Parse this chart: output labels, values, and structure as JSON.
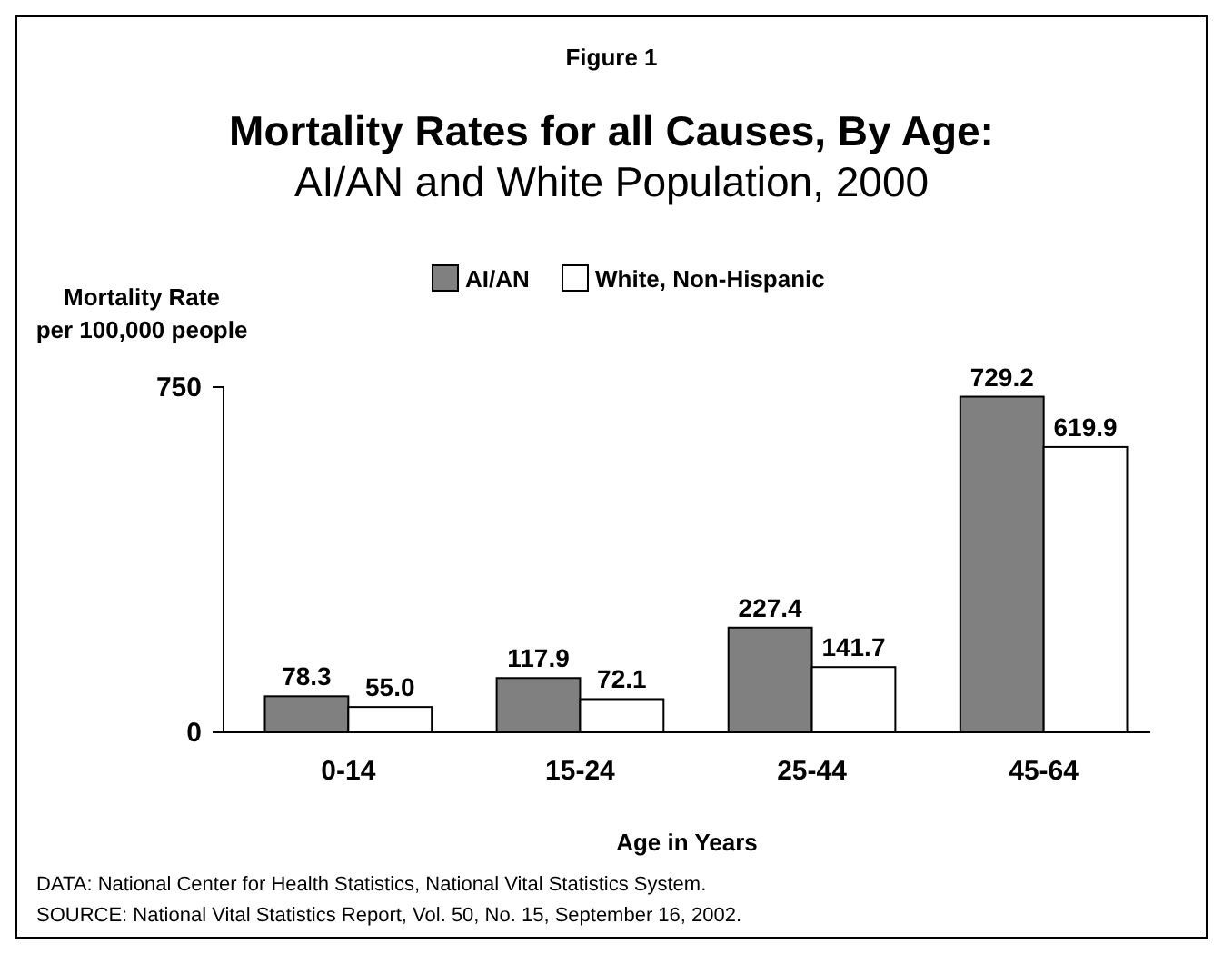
{
  "chart_data": {
    "type": "bar",
    "title": "Mortality Rates for all Causes, By Age:",
    "subtitle": "AI/AN and White Population, 2000",
    "xlabel": "Age in Years",
    "ylabel": "Mortality Rate\nper 100,000 people",
    "annotations": [
      "Figure 1",
      "DATA: National Center for Health Statistics, National Vital Statistics System.",
      "SOURCE: National Vital Statistics Report, Vol. 50, No. 15, September 16, 2002."
    ],
    "categories": [
      "0-14",
      "15-24",
      "25-44",
      "45-64"
    ],
    "series": [
      {
        "name": "AI/AN",
        "color": "#808080",
        "values": [
          78.3,
          117.9,
          227.4,
          729.2
        ],
        "value_labels": [
          "78.3",
          "117.9",
          "227.4",
          "729.2"
        ]
      },
      {
        "name": "White, Non-Hispanic",
        "color": "#ffffff",
        "values": [
          55.0,
          72.1,
          141.7,
          619.9
        ],
        "value_labels": [
          "55.0",
          "72.1",
          "141.7",
          "619.9"
        ]
      }
    ],
    "ylim": [
      0,
      750
    ],
    "yticks": [
      0,
      750
    ],
    "grid": false,
    "legend": "top"
  }
}
